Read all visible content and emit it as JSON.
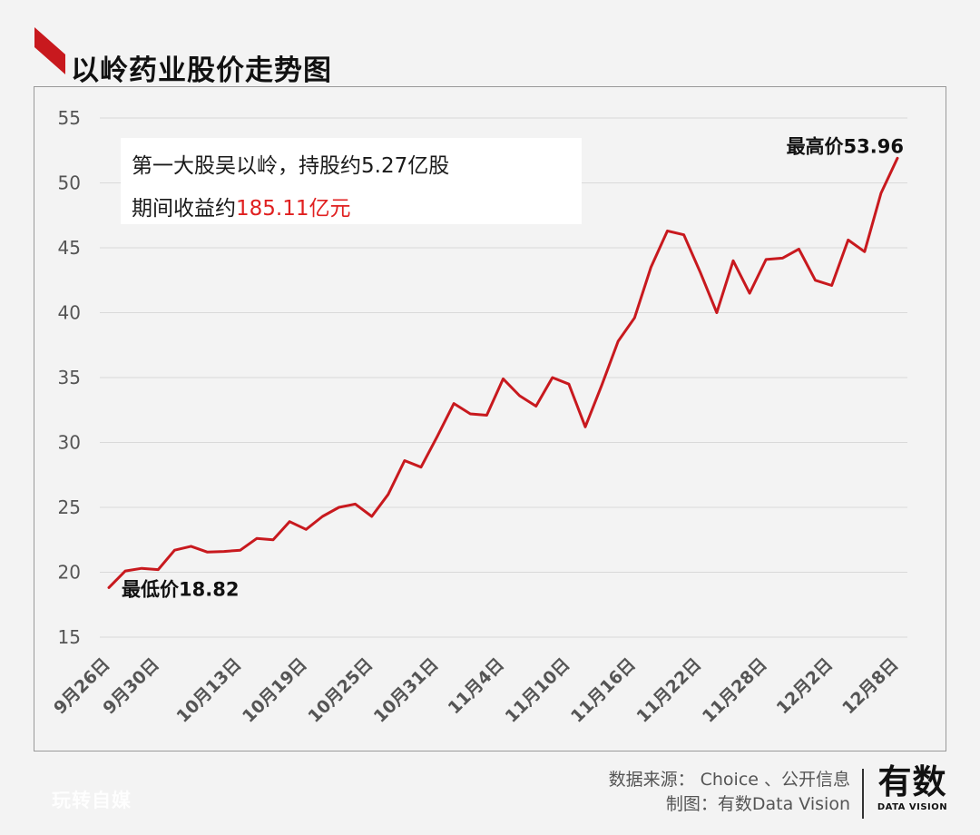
{
  "page": {
    "title": "以岭药业股价走势图",
    "accent_color": "#c8191e"
  },
  "annotation": {
    "line1": "第一大股吴以岭，持股约5.27亿股",
    "line2_prefix": "期间收益约",
    "line2_highlight": "185.11亿元",
    "highlight_color": "#e02020"
  },
  "labels": {
    "min_label": "最低价18.82",
    "max_label": "最高价53.96"
  },
  "footer": {
    "source": "数据来源： Choice 、公开信息",
    "made_by": "制图：有数Data Vision",
    "brand_cn": "有数",
    "brand_en": "DATA VISION",
    "watermark": "玩转自媒"
  },
  "chart_data": {
    "type": "line",
    "title": "以岭药业股价走势图",
    "xlabel": "",
    "ylabel": "",
    "ylim": [
      15,
      55
    ],
    "yticks": [
      15,
      20,
      25,
      30,
      35,
      40,
      45,
      50,
      55
    ],
    "grid": true,
    "line_color": "#c8191e",
    "x_tick_labels": [
      "9月26日",
      "9月30日",
      "10月13日",
      "10月19日",
      "10月25日",
      "10月31日",
      "11月4日",
      "11月10日",
      "11月16日",
      "11月22日",
      "11月28日",
      "12月2日",
      "12月8日"
    ],
    "values": [
      18.82,
      20.1,
      20.3,
      20.2,
      21.7,
      22.0,
      21.55,
      21.6,
      21.7,
      22.6,
      22.5,
      23.9,
      23.3,
      24.3,
      25.0,
      25.25,
      24.3,
      26.0,
      28.6,
      28.1,
      30.5,
      33.0,
      32.2,
      32.1,
      34.9,
      33.6,
      32.8,
      35.0,
      34.5,
      31.2,
      34.4,
      37.8,
      39.6,
      43.5,
      46.3,
      46.0,
      43.1,
      40.0,
      44.0,
      41.5,
      44.1,
      44.2,
      44.9,
      42.5,
      42.1,
      45.6,
      44.7,
      49.2,
      51.9
    ],
    "tick_value_indices": [
      0,
      3,
      8,
      12,
      16,
      20,
      24,
      28,
      32,
      36,
      40,
      44,
      48
    ],
    "min_point_index": 0,
    "max_point_index": 48
  }
}
